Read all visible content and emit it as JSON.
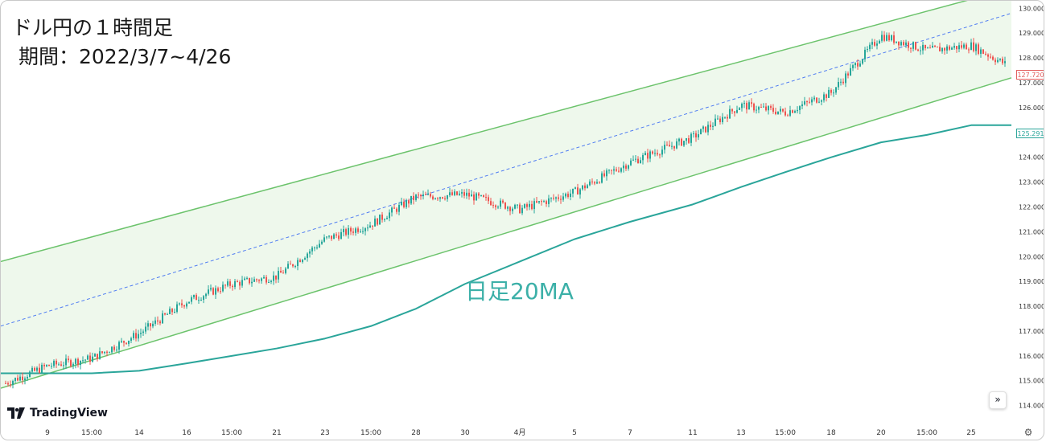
{
  "title": {
    "line1": "ドル円の１時間足",
    "line2": "期間：2022/3/7~4/26"
  },
  "annotation": {
    "ma_label": "日足20MA"
  },
  "price_tags": {
    "last_price": "127.720",
    "ma_value": "125.291"
  },
  "branding": {
    "logo_text": "TradingView",
    "logo_icon": "tradingview-logo-icon"
  },
  "controls": {
    "scroll_icon": "»",
    "settings_icon": "⚙"
  },
  "colors": {
    "channel": "#6cc36c",
    "channel_fill": "#eef8ec",
    "midline": "#4f7cf2",
    "ma": "#2aa59a",
    "up": "#26a69a",
    "down": "#ef5350"
  },
  "chart_data": {
    "type": "line",
    "title": "ドル円の１時間足",
    "subtitle": "期間：2022/3/7~4/26",
    "y_axis": {
      "side": "right",
      "ylim": [
        113.6,
        130.3
      ],
      "ticks": [
        "130.000",
        "129.000",
        "128.000",
        "127.000",
        "126.000",
        "125.000",
        "124.000",
        "123.000",
        "122.000",
        "121.000",
        "120.000",
        "119.000",
        "118.000",
        "117.000",
        "116.000",
        "115.000",
        "114.000"
      ]
    },
    "x_axis": {
      "ticks": [
        "9",
        "15:00",
        "14",
        "16",
        "15:00",
        "21",
        "23",
        "15:00",
        "28",
        "30",
        "4月",
        "5",
        "7",
        "11",
        "13",
        "15:00",
        "18",
        "20",
        "15:00",
        "25"
      ]
    },
    "grid": false,
    "series": [
      {
        "name": "",
        "style": "candles",
        "x": [
          "9",
          "15:00",
          "14",
          "16",
          "15:00",
          "21",
          "23",
          "15:00",
          "28",
          "30",
          "4月",
          "5",
          "7",
          "11",
          "13",
          "15:00",
          "18",
          "20",
          "15:00",
          "25"
        ],
        "values": [
          115.6,
          115.9,
          116.9,
          118.2,
          118.9,
          119.2,
          120.7,
          121.3,
          122.4,
          122.5,
          121.9,
          122.6,
          123.8,
          124.8,
          126.1,
          125.8,
          126.6,
          128.9,
          128.3,
          128.5
        ],
        "last": 127.72
      },
      {
        "name": "日足20MA",
        "style": "line",
        "x": [
          "9",
          "15:00",
          "14",
          "16",
          "15:00",
          "21",
          "23",
          "15:00",
          "28",
          "30",
          "4月",
          "5",
          "7",
          "11",
          "13",
          "15:00",
          "18",
          "20",
          "15:00",
          "25"
        ],
        "values": [
          115.3,
          115.3,
          115.4,
          115.7,
          116.0,
          116.3,
          116.7,
          117.2,
          117.9,
          118.9,
          119.8,
          120.7,
          121.4,
          122.1,
          122.8,
          123.4,
          124.0,
          124.6,
          124.9,
          125.29
        ]
      }
    ],
    "channel": {
      "upper": {
        "start": 119.8,
        "end": 130.8
      },
      "middle": {
        "start": 117.2,
        "end": 129.8
      },
      "lower": {
        "start": 114.7,
        "end": 127.2
      }
    }
  }
}
